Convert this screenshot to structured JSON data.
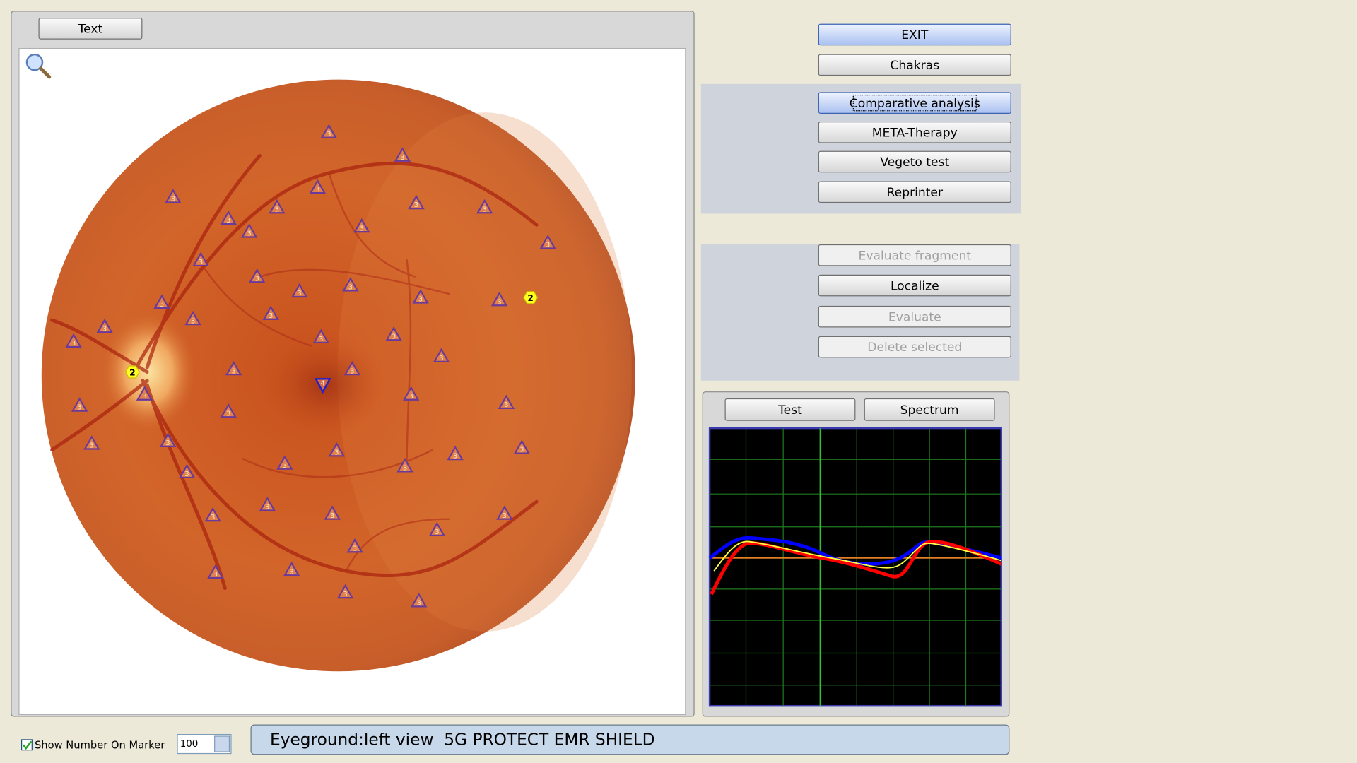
{
  "left_panel": {
    "button": "Text"
  },
  "markers": [
    "3",
    "3",
    "3",
    "3",
    "3",
    "3",
    "3",
    "3",
    "3",
    "3",
    "3",
    "3",
    "3",
    "3",
    "3",
    "3",
    "3",
    "2",
    "3",
    "3",
    "3",
    "3",
    "3",
    "3",
    "3",
    "3",
    "2",
    "3",
    "3",
    "4",
    "3",
    "3",
    "3",
    "3",
    "3",
    "3",
    "3",
    "3",
    "3",
    "3",
    "3",
    "3",
    "3",
    "3",
    "3",
    "3",
    "3",
    "3",
    "3",
    "3",
    "3",
    "3",
    "3"
  ],
  "buttons": {
    "exit": "EXIT",
    "chakras": "Chakras",
    "group1": [
      "Comparative analysis",
      "META-Therapy",
      "Vegeto test",
      "Reprinter"
    ],
    "group2": [
      {
        "label": "Evaluate fragment",
        "enabled": false
      },
      {
        "label": "Localize",
        "enabled": true
      },
      {
        "label": "Evaluate",
        "enabled": false
      },
      {
        "label": "Delete selected",
        "enabled": false
      }
    ]
  },
  "spectrum": {
    "tabs": [
      "Test",
      "Spectrum"
    ]
  },
  "footer": {
    "checkbox_label": "Show Number On Marker",
    "checked": true,
    "spinner_value": "100",
    "status": "Eyeground:left view  5G PROTECT EMR SHIELD"
  }
}
